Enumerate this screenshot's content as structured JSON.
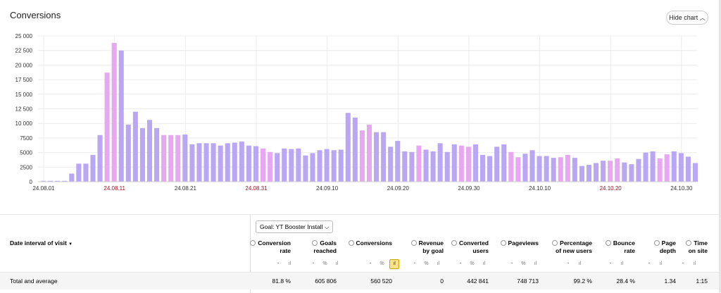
{
  "chart_title": "Conversions",
  "hide_chart_label": "Hide chart",
  "chart_data": {
    "type": "bar",
    "title": "Conversions",
    "ylim": [
      0,
      25000
    ],
    "y_ticks": [
      "0",
      "2500",
      "5000",
      "7500",
      "10 000",
      "12 500",
      "15 000",
      "17 500",
      "20 000",
      "22 500",
      "25 000"
    ],
    "x_tick_labels": [
      "24.08.01",
      "24.08.11",
      "24.08.21",
      "24.08.31",
      "24.09.10",
      "24.09.20",
      "24.09.30",
      "24.10.10",
      "24.10.20",
      "24.10.30"
    ],
    "weekend_tick_labels": [
      "24.08.11",
      "24.08.31",
      "24.10.20"
    ],
    "values": [
      150,
      150,
      150,
      150,
      1400,
      3100,
      3100,
      4600,
      8000,
      18700,
      23800,
      22500,
      9800,
      12000,
      9200,
      10600,
      9200,
      8000,
      8000,
      8000,
      8100,
      6400,
      6600,
      6600,
      6600,
      6200,
      6600,
      6700,
      6900,
      6200,
      6100,
      5700,
      5100,
      4900,
      5700,
      5600,
      5700,
      4500,
      4900,
      5400,
      5600,
      5400,
      5500,
      11800,
      11000,
      8800,
      9800,
      8500,
      8500,
      6000,
      7000,
      5200,
      5100,
      6200,
      5500,
      5200,
      6600,
      5100,
      6400,
      6200,
      6000,
      6400,
      4600,
      4400,
      6000,
      6400,
      5100,
      4200,
      4800,
      5400,
      4400,
      4400,
      4100,
      4200,
      4600,
      4100,
      2700,
      2900,
      3200,
      3600,
      3600,
      4000,
      3300,
      3000,
      3900,
      5000,
      5200,
      4000,
      4700,
      5200,
      4900,
      4300,
      3200
    ],
    "highlight_indices": [
      9,
      10,
      17,
      18,
      19,
      31,
      32,
      45,
      46,
      53,
      59,
      60,
      66,
      67,
      73,
      74,
      80,
      81,
      87,
      88
    ],
    "bar_color": "#b9a7f4",
    "highlight_color": "#e8a7f1"
  },
  "goal_selector": "Goal: YT Booster Install",
  "dimension_header": "Date interval of visit",
  "sort_glyph": "▼",
  "columns": [
    {
      "line1": "Conversion",
      "line2": "rate",
      "icons": [
        "◔",
        "ıl"
      ],
      "value": "81.8 %"
    },
    {
      "line1": "Goals",
      "line2": "reached",
      "icons": [
        "◔",
        "%",
        "ıl"
      ],
      "value": "605 806"
    },
    {
      "line1": "Conversions",
      "line2": "",
      "icons": [
        "◔",
        "%",
        "ıl"
      ],
      "value": "560 520"
    },
    {
      "line1": "Revenue",
      "line2": "by goal",
      "icons": [
        "◔",
        "%",
        "ıl"
      ],
      "value": "0"
    },
    {
      "line1": "Converted",
      "line2": "users",
      "icons": [
        "◔",
        "%",
        "ıl"
      ],
      "value": "442 841"
    },
    {
      "line1": "Pageviews",
      "line2": "",
      "icons": [
        "◔",
        "%",
        "ıl"
      ],
      "value": "748 713"
    },
    {
      "line1": "Percentage",
      "line2": "of new users",
      "icons": [
        "◔",
        "ıl"
      ],
      "value": "99.2 %"
    },
    {
      "line1": "Bounce",
      "line2": "rate",
      "icons": [
        "◔",
        "ıl"
      ],
      "value": "28.4 %"
    },
    {
      "line1": "Page",
      "line2": "depth",
      "icons": [
        "◔",
        "ıl"
      ],
      "value": "1.34"
    },
    {
      "line1": "Time",
      "line2": "on site",
      "icons": [
        "◔",
        "ıl"
      ],
      "value": "1:15"
    }
  ],
  "total_row_label": "Total and average"
}
